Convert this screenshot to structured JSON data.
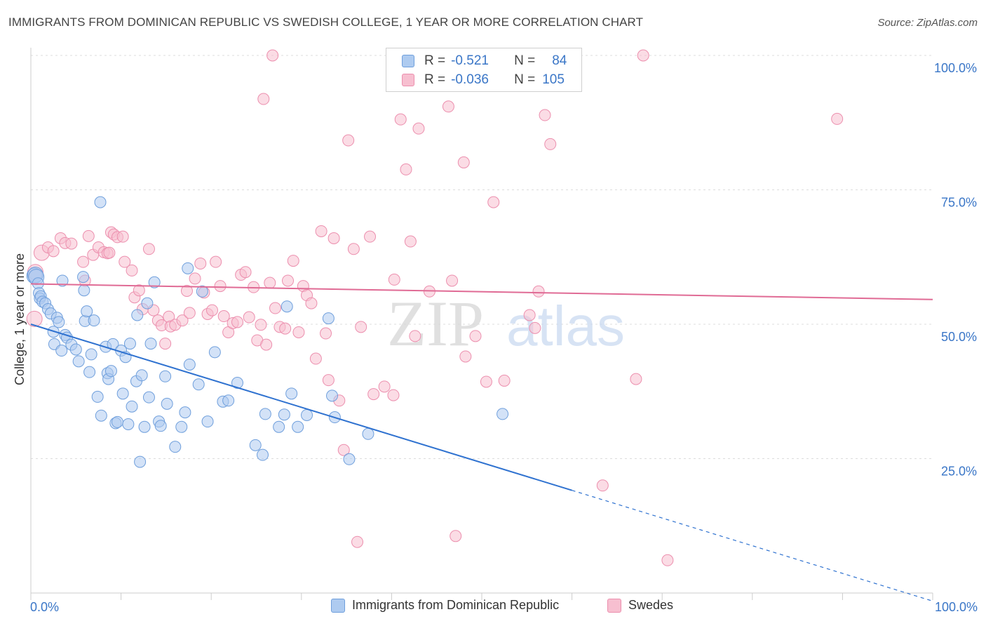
{
  "title": "IMMIGRANTS FROM DOMINICAN REPUBLIC VS SWEDISH COLLEGE, 1 YEAR OR MORE CORRELATION CHART",
  "source": "Source: ZipAtlas.com",
  "watermark": {
    "zip": "ZIP",
    "atlas": "atlas"
  },
  "colors": {
    "blue_fill": "#aecbf0",
    "blue_stroke": "#6f9fdc",
    "blue_line": "#2f72d0",
    "pink_fill": "#f7bfd0",
    "pink_stroke": "#ec8fae",
    "pink_line": "#e06b95"
  },
  "legend": {
    "rows": [
      {
        "r_label": "R =",
        "r_value": "-0.521",
        "n_label": "N =",
        "n_value": "84"
      },
      {
        "r_label": "R =",
        "r_value": "-0.036",
        "n_label": "N =",
        "n_value": "105"
      }
    ]
  },
  "chart_data": {
    "type": "scatter",
    "title": "IMMIGRANTS FROM DOMINICAN REPUBLIC VS SWEDISH COLLEGE, 1 YEAR OR MORE CORRELATION CHART",
    "xlabel": "",
    "ylabel": "College, 1 year or more",
    "xlim": [
      0,
      100
    ],
    "ylim": [
      0,
      100
    ],
    "x_tick_labels": [
      "0.0%",
      "100.0%"
    ],
    "y_tick_labels": [
      "25.0%",
      "50.0%",
      "75.0%",
      "100.0%"
    ],
    "y_ticks": [
      25,
      50,
      75,
      100
    ],
    "series": [
      {
        "name": "Immigrants from Dominican Republic",
        "color": "blue",
        "trend": {
          "x0": 0,
          "y0": 50.0,
          "x1": 60,
          "y1": 19.1,
          "dash_to_x": 100,
          "dash_to_y": -1.5
        },
        "points": [
          [
            0.4,
            59
          ],
          [
            0.5,
            59.2
          ],
          [
            0.6,
            58.8
          ],
          [
            0.8,
            57.6
          ],
          [
            0.9,
            55.8
          ],
          [
            1,
            54.8
          ],
          [
            1.1,
            55.2
          ],
          [
            1.3,
            54.2
          ],
          [
            1.6,
            53.9
          ],
          [
            1.9,
            52.8
          ],
          [
            2.2,
            52
          ],
          [
            2.5,
            48.6
          ],
          [
            2.6,
            46.3
          ],
          [
            2.9,
            51.2
          ],
          [
            3.1,
            50.4
          ],
          [
            3.4,
            45.1
          ],
          [
            3.5,
            58.1
          ],
          [
            3.8,
            48
          ],
          [
            4,
            47.5
          ],
          [
            4.5,
            46.2
          ],
          [
            5,
            45.3
          ],
          [
            5.3,
            43.1
          ],
          [
            5.8,
            58.8
          ],
          [
            5.9,
            56.3
          ],
          [
            6,
            50.6
          ],
          [
            6.2,
            52.4
          ],
          [
            6.5,
            41.1
          ],
          [
            6.7,
            44.4
          ],
          [
            7,
            50.7
          ],
          [
            7.4,
            36.5
          ],
          [
            7.7,
            72.7
          ],
          [
            7.8,
            33
          ],
          [
            8.3,
            45.8
          ],
          [
            8.5,
            40.9
          ],
          [
            8.6,
            39.8
          ],
          [
            8.9,
            41.3
          ],
          [
            9.1,
            46.3
          ],
          [
            9.4,
            31.6
          ],
          [
            9.6,
            31.8
          ],
          [
            10,
            45.1
          ],
          [
            10.2,
            37.1
          ],
          [
            10.5,
            43.9
          ],
          [
            10.8,
            31.4
          ],
          [
            11,
            46.4
          ],
          [
            11.2,
            34.7
          ],
          [
            11.7,
            39.4
          ],
          [
            11.8,
            51.7
          ],
          [
            12.1,
            24.4
          ],
          [
            12.3,
            40.5
          ],
          [
            12.6,
            30.9
          ],
          [
            12.9,
            53.9
          ],
          [
            13.1,
            36.4
          ],
          [
            13.3,
            46.4
          ],
          [
            13.7,
            57.8
          ],
          [
            14.2,
            31.9
          ],
          [
            14.4,
            31.1
          ],
          [
            14.9,
            40.3
          ],
          [
            15.1,
            35.2
          ],
          [
            16,
            27.2
          ],
          [
            16.7,
            30.9
          ],
          [
            17.1,
            33.6
          ],
          [
            17.4,
            60.4
          ],
          [
            17.6,
            42.5
          ],
          [
            18.6,
            38.8
          ],
          [
            19,
            56.1
          ],
          [
            19.6,
            31.9
          ],
          [
            20.4,
            44.8
          ],
          [
            21.3,
            35.6
          ],
          [
            21.9,
            35.8
          ],
          [
            22.9,
            39.1
          ],
          [
            24.9,
            27.5
          ],
          [
            25.7,
            25.7
          ],
          [
            26,
            33.3
          ],
          [
            27.5,
            30.9
          ],
          [
            28.1,
            33.2
          ],
          [
            28.4,
            53.3
          ],
          [
            28.9,
            37.1
          ],
          [
            29.6,
            30.9
          ],
          [
            30.6,
            33.1
          ],
          [
            33,
            51.1
          ],
          [
            33.4,
            36.7
          ],
          [
            33.7,
            32.7
          ],
          [
            35.3,
            24.9
          ],
          [
            37.4,
            29.6
          ],
          [
            52.3,
            33.3
          ]
        ]
      },
      {
        "name": "Swedes",
        "color": "pink",
        "trend": {
          "x0": 0,
          "y0": 57.5,
          "x1": 100,
          "y1": 54.6
        },
        "points": [
          [
            0.4,
            51
          ],
          [
            0.5,
            59.7
          ],
          [
            1.2,
            63.3
          ],
          [
            1.9,
            64.3
          ],
          [
            2.5,
            63.6
          ],
          [
            3.3,
            66
          ],
          [
            3.8,
            65.1
          ],
          [
            4.5,
            65
          ],
          [
            5.8,
            61.6
          ],
          [
            6,
            58.1
          ],
          [
            6.4,
            66.4
          ],
          [
            6.9,
            62.9
          ],
          [
            7.5,
            64.3
          ],
          [
            8.1,
            63.4
          ],
          [
            8.5,
            63.2
          ],
          [
            8.7,
            63.3
          ],
          [
            8.9,
            67.1
          ],
          [
            9.2,
            66.7
          ],
          [
            9.6,
            66.2
          ],
          [
            10.2,
            66.3
          ],
          [
            10.4,
            61.6
          ],
          [
            11.2,
            60
          ],
          [
            11.5,
            55
          ],
          [
            12,
            56.3
          ],
          [
            12.4,
            52.8
          ],
          [
            13.1,
            64
          ],
          [
            13.6,
            52.6
          ],
          [
            14.1,
            50.7
          ],
          [
            14.5,
            49.8
          ],
          [
            14.9,
            46.4
          ],
          [
            15.3,
            51.4
          ],
          [
            15.5,
            49.6
          ],
          [
            16,
            49.9
          ],
          [
            16.8,
            50.7
          ],
          [
            17.3,
            56.2
          ],
          [
            17.6,
            52.1
          ],
          [
            18.2,
            58.5
          ],
          [
            18.8,
            61.3
          ],
          [
            19.2,
            55.9
          ],
          [
            19.6,
            51.9
          ],
          [
            20.1,
            52.6
          ],
          [
            20.5,
            61.6
          ],
          [
            21,
            57.1
          ],
          [
            21.4,
            51.5
          ],
          [
            21.9,
            48.5
          ],
          [
            22.4,
            50.2
          ],
          [
            22.9,
            50.4
          ],
          [
            23.3,
            59.2
          ],
          [
            23.8,
            59.7
          ],
          [
            24.2,
            51.3
          ],
          [
            24.7,
            56.9
          ],
          [
            25.1,
            47
          ],
          [
            25.5,
            49.9
          ],
          [
            25.8,
            91.9
          ],
          [
            26.1,
            46.2
          ],
          [
            26.5,
            57.7
          ],
          [
            27.1,
            53
          ],
          [
            27.6,
            49.5
          ],
          [
            28.2,
            49.2
          ],
          [
            28.5,
            58.1
          ],
          [
            29.1,
            61.8
          ],
          [
            29.7,
            48.5
          ],
          [
            30.2,
            57.1
          ],
          [
            30.6,
            55.4
          ],
          [
            31.1,
            53.9
          ],
          [
            31.6,
            43.6
          ],
          [
            32.2,
            67.3
          ],
          [
            32.7,
            48.3
          ],
          [
            33,
            39.6
          ],
          [
            33.6,
            66
          ],
          [
            34.2,
            35.8
          ],
          [
            34.7,
            26.6
          ],
          [
            35.2,
            84.2
          ],
          [
            35.8,
            64
          ],
          [
            36.6,
            49.5
          ],
          [
            37.6,
            66.3
          ],
          [
            38,
            37
          ],
          [
            39.2,
            38.4
          ],
          [
            40.2,
            36.8
          ],
          [
            40.3,
            58.3
          ],
          [
            41,
            88.1
          ],
          [
            41.6,
            78.8
          ],
          [
            42.1,
            65.4
          ],
          [
            42.6,
            47.8
          ],
          [
            43,
            86.4
          ],
          [
            44.2,
            56.1
          ],
          [
            46.3,
            90.5
          ],
          [
            46.7,
            58.1
          ],
          [
            48,
            80.1
          ],
          [
            48.2,
            44
          ],
          [
            49.3,
            47.8
          ],
          [
            50.5,
            39.3
          ],
          [
            51.3,
            72.7
          ],
          [
            52.5,
            39.5
          ],
          [
            55.3,
            51.7
          ],
          [
            55.9,
            49.3
          ],
          [
            56.3,
            56.1
          ],
          [
            57,
            88.9
          ],
          [
            57.6,
            83.5
          ],
          [
            63.4,
            20
          ],
          [
            67.1,
            39.8
          ],
          [
            67.9,
            100
          ],
          [
            89.4,
            88.2
          ],
          [
            36.2,
            9.5
          ],
          [
            47.1,
            10.6
          ],
          [
            70.6,
            6.1
          ],
          [
            26.8,
            100
          ]
        ]
      }
    ]
  }
}
